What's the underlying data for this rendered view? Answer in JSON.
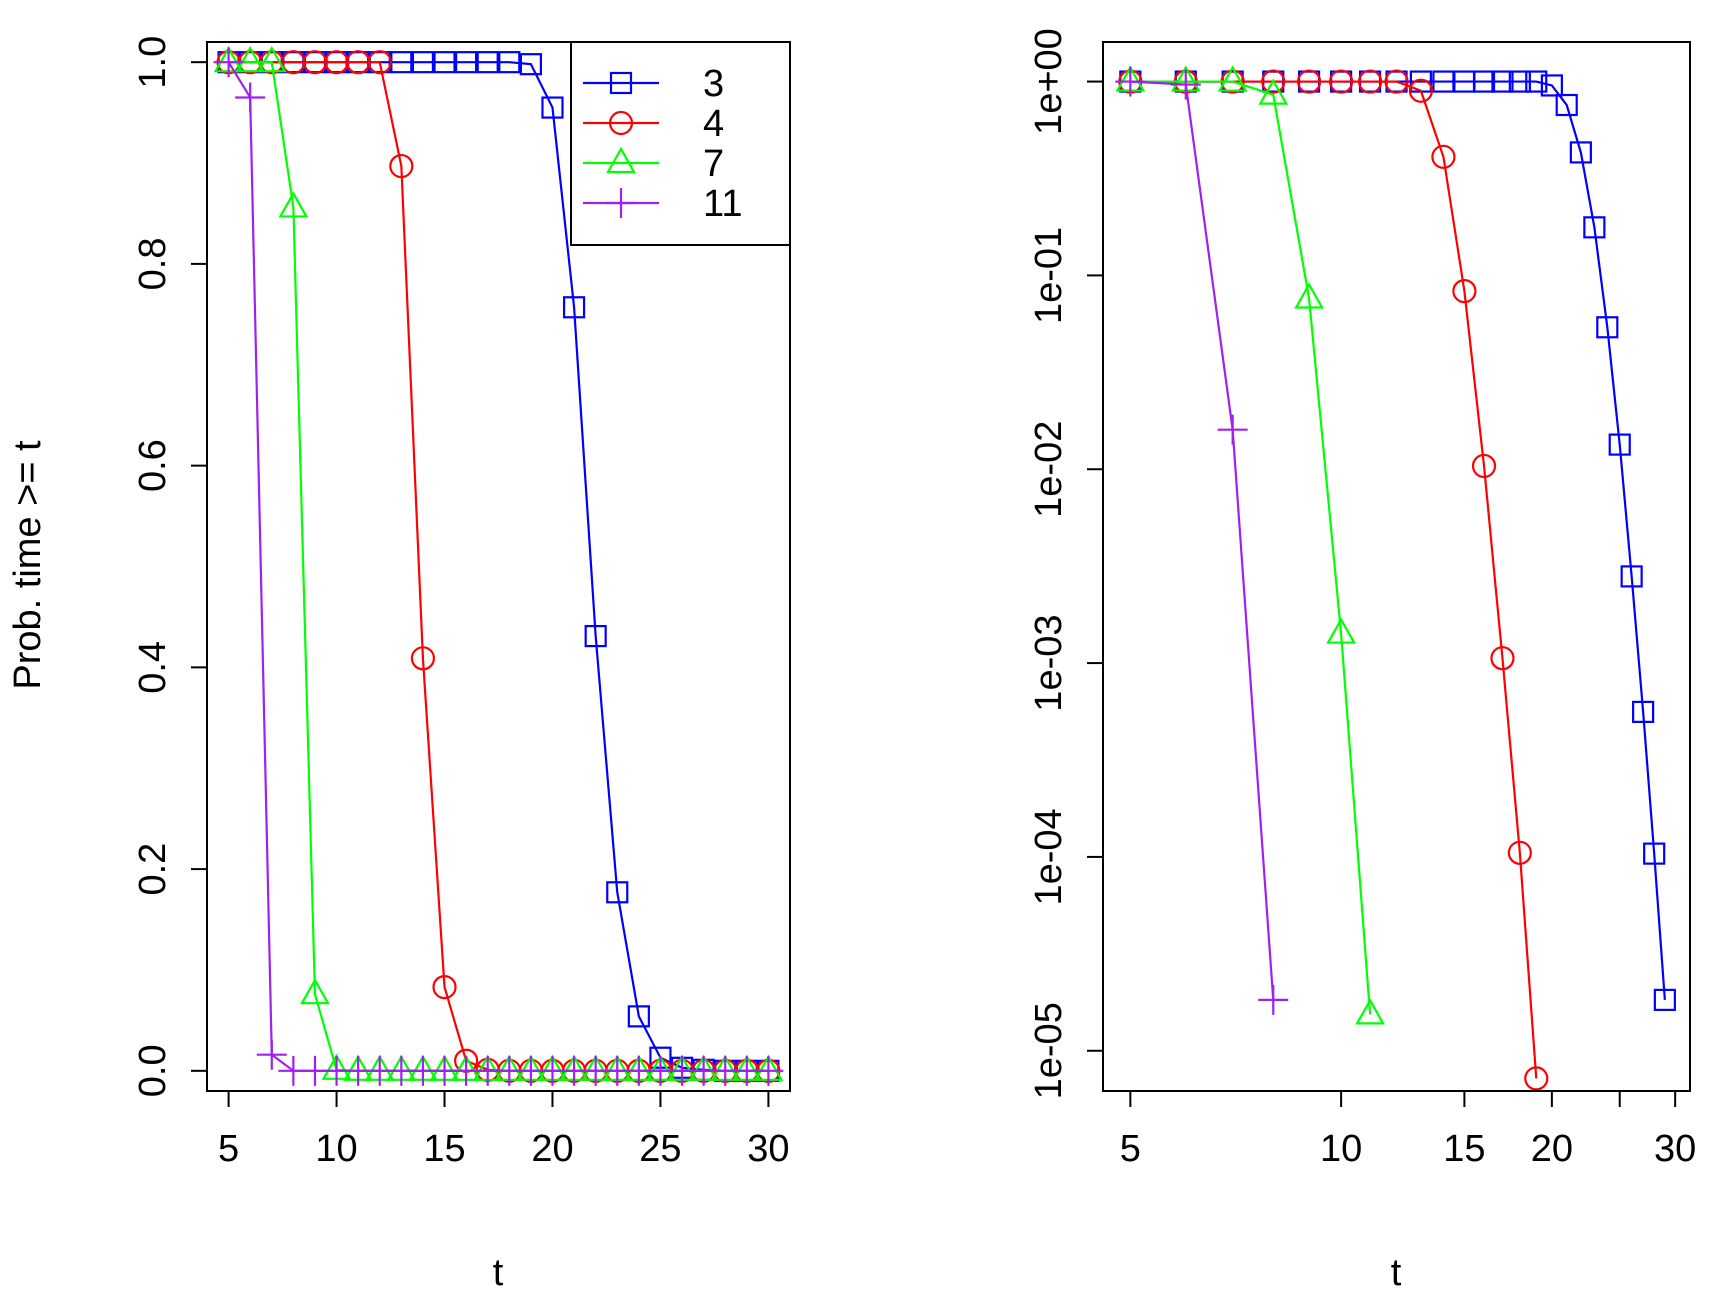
{
  "chart_data": [
    {
      "type": "line",
      "title": "",
      "xlabel": "t",
      "ylabel": "Prob. time >= t",
      "xlim": [
        4,
        31
      ],
      "ylim": [
        -0.02,
        1.02
      ],
      "x_ticks": [
        5,
        10,
        15,
        20,
        25,
        30
      ],
      "x_tick_labels": [
        "5",
        "10",
        "15",
        "20",
        "25",
        "30"
      ],
      "y_ticks": [
        0.0,
        0.2,
        0.4,
        0.6,
        0.8,
        1.0
      ],
      "y_tick_labels": [
        "0.0",
        "0.2",
        "0.4",
        "0.6",
        "0.8",
        "1.0"
      ],
      "y_scale": "linear",
      "x_scale": "linear",
      "grid": false,
      "legend": {
        "position": "top-right",
        "entries": [
          "3",
          "4",
          "7",
          "11"
        ]
      },
      "series": [
        {
          "name": "3",
          "color": "#0000ff",
          "marker": "square",
          "x": [
            5,
            6,
            7,
            8,
            9,
            10,
            11,
            12,
            13,
            14,
            15,
            16,
            17,
            18,
            19,
            20,
            21,
            22,
            23,
            24,
            25,
            26,
            27,
            28,
            29,
            30
          ],
          "y": [
            1,
            1,
            1,
            1,
            1,
            1,
            1,
            1,
            1,
            1,
            1,
            1,
            1,
            1,
            0.998,
            0.955,
            0.757,
            0.431,
            0.177,
            0.054,
            0.013,
            0.003,
            0.001,
            0.0,
            0.0,
            0.0
          ]
        },
        {
          "name": "4",
          "color": "#ff0000",
          "marker": "circle",
          "x": [
            5,
            6,
            7,
            8,
            9,
            10,
            11,
            12,
            13,
            14,
            15,
            16,
            17,
            18,
            19,
            20,
            21,
            22,
            23,
            24,
            25,
            26,
            27,
            28,
            29,
            30
          ],
          "y": [
            1,
            1,
            1,
            1,
            1,
            1,
            1,
            1,
            0.897,
            0.409,
            0.083,
            0.01,
            0.001,
            0,
            0,
            0,
            0,
            0,
            0,
            0,
            0,
            0,
            0,
            0,
            0,
            0
          ]
        },
        {
          "name": "7",
          "color": "#00ff00",
          "marker": "triangle",
          "x": [
            5,
            6,
            7,
            8,
            9,
            10,
            11,
            12,
            13,
            14,
            15,
            16,
            17,
            18,
            19,
            20,
            21,
            22,
            23,
            24,
            25,
            26,
            27,
            28,
            29,
            30
          ],
          "y": [
            1,
            1,
            1,
            0.856,
            0.076,
            0.001,
            0,
            0,
            0,
            0,
            0,
            0,
            0,
            0,
            0,
            0,
            0,
            0,
            0,
            0,
            0,
            0,
            0,
            0,
            0,
            0
          ]
        },
        {
          "name": "11",
          "color": "#a020f0",
          "marker": "plus",
          "x": [
            5,
            6,
            7,
            8,
            9,
            10,
            11,
            12,
            13,
            14,
            15,
            16,
            17,
            18,
            19,
            20,
            21,
            22,
            23,
            24,
            25,
            26,
            27,
            28,
            29,
            30
          ],
          "y": [
            1,
            0.965,
            0.016,
            0,
            0,
            0,
            0,
            0,
            0,
            0,
            0,
            0,
            0,
            0,
            0,
            0,
            0,
            0,
            0,
            0,
            0,
            0,
            0,
            0,
            0,
            0
          ]
        }
      ]
    },
    {
      "type": "line",
      "title": "",
      "xlabel": "t",
      "ylabel": "",
      "x_scale": "log",
      "y_scale": "log",
      "xlim": [
        4.57,
        31.5
      ],
      "ylim": [
        6.2e-06,
        1.6
      ],
      "x_ticks": [
        5,
        10,
        15,
        20,
        25,
        30
      ],
      "x_tick_labels": [
        "5",
        "10",
        "15",
        "20",
        "",
        "30"
      ],
      "y_ticks": [
        1,
        0.1,
        0.01,
        0.001,
        0.0001,
        1e-05
      ],
      "y_tick_labels": [
        "1e+00",
        "1e-01",
        "1e-02",
        "1e-03",
        "1e-04",
        "1e-05"
      ],
      "grid": false,
      "series": [
        {
          "name": "3",
          "color": "#0000ff",
          "marker": "square",
          "x": [
            5,
            6,
            7,
            8,
            9,
            10,
            11,
            12,
            13,
            14,
            15,
            16,
            17,
            18,
            19,
            20,
            21,
            22,
            23,
            24,
            25,
            26,
            27,
            28,
            29
          ],
          "y": [
            1,
            1,
            1,
            1,
            1,
            1,
            1,
            1,
            1,
            1,
            1,
            1,
            1,
            1,
            1,
            0.955,
            0.757,
            0.431,
            0.177,
            0.054,
            0.0134,
            0.0028,
            0.00056,
            0.000104,
            1.83e-05
          ]
        },
        {
          "name": "4",
          "color": "#ff0000",
          "marker": "circle",
          "x": [
            5,
            6,
            7,
            8,
            9,
            10,
            11,
            12,
            13,
            14,
            15,
            16,
            17,
            18,
            19
          ],
          "y": [
            1,
            1,
            1,
            1,
            1,
            1,
            1,
            1,
            0.897,
            0.409,
            0.083,
            0.0104,
            0.00106,
            0.000105,
            7.2e-06
          ]
        },
        {
          "name": "7",
          "color": "#00ff00",
          "marker": "triangle",
          "x": [
            5,
            6,
            7,
            8,
            9,
            10,
            11
          ],
          "y": [
            1,
            1,
            1,
            0.856,
            0.076,
            0.00142,
            1.54e-05
          ]
        },
        {
          "name": "11",
          "color": "#a020f0",
          "marker": "plus",
          "x": [
            5,
            6,
            7,
            8
          ],
          "y": [
            1,
            0.965,
            0.016,
            1.83e-05
          ]
        }
      ]
    }
  ]
}
